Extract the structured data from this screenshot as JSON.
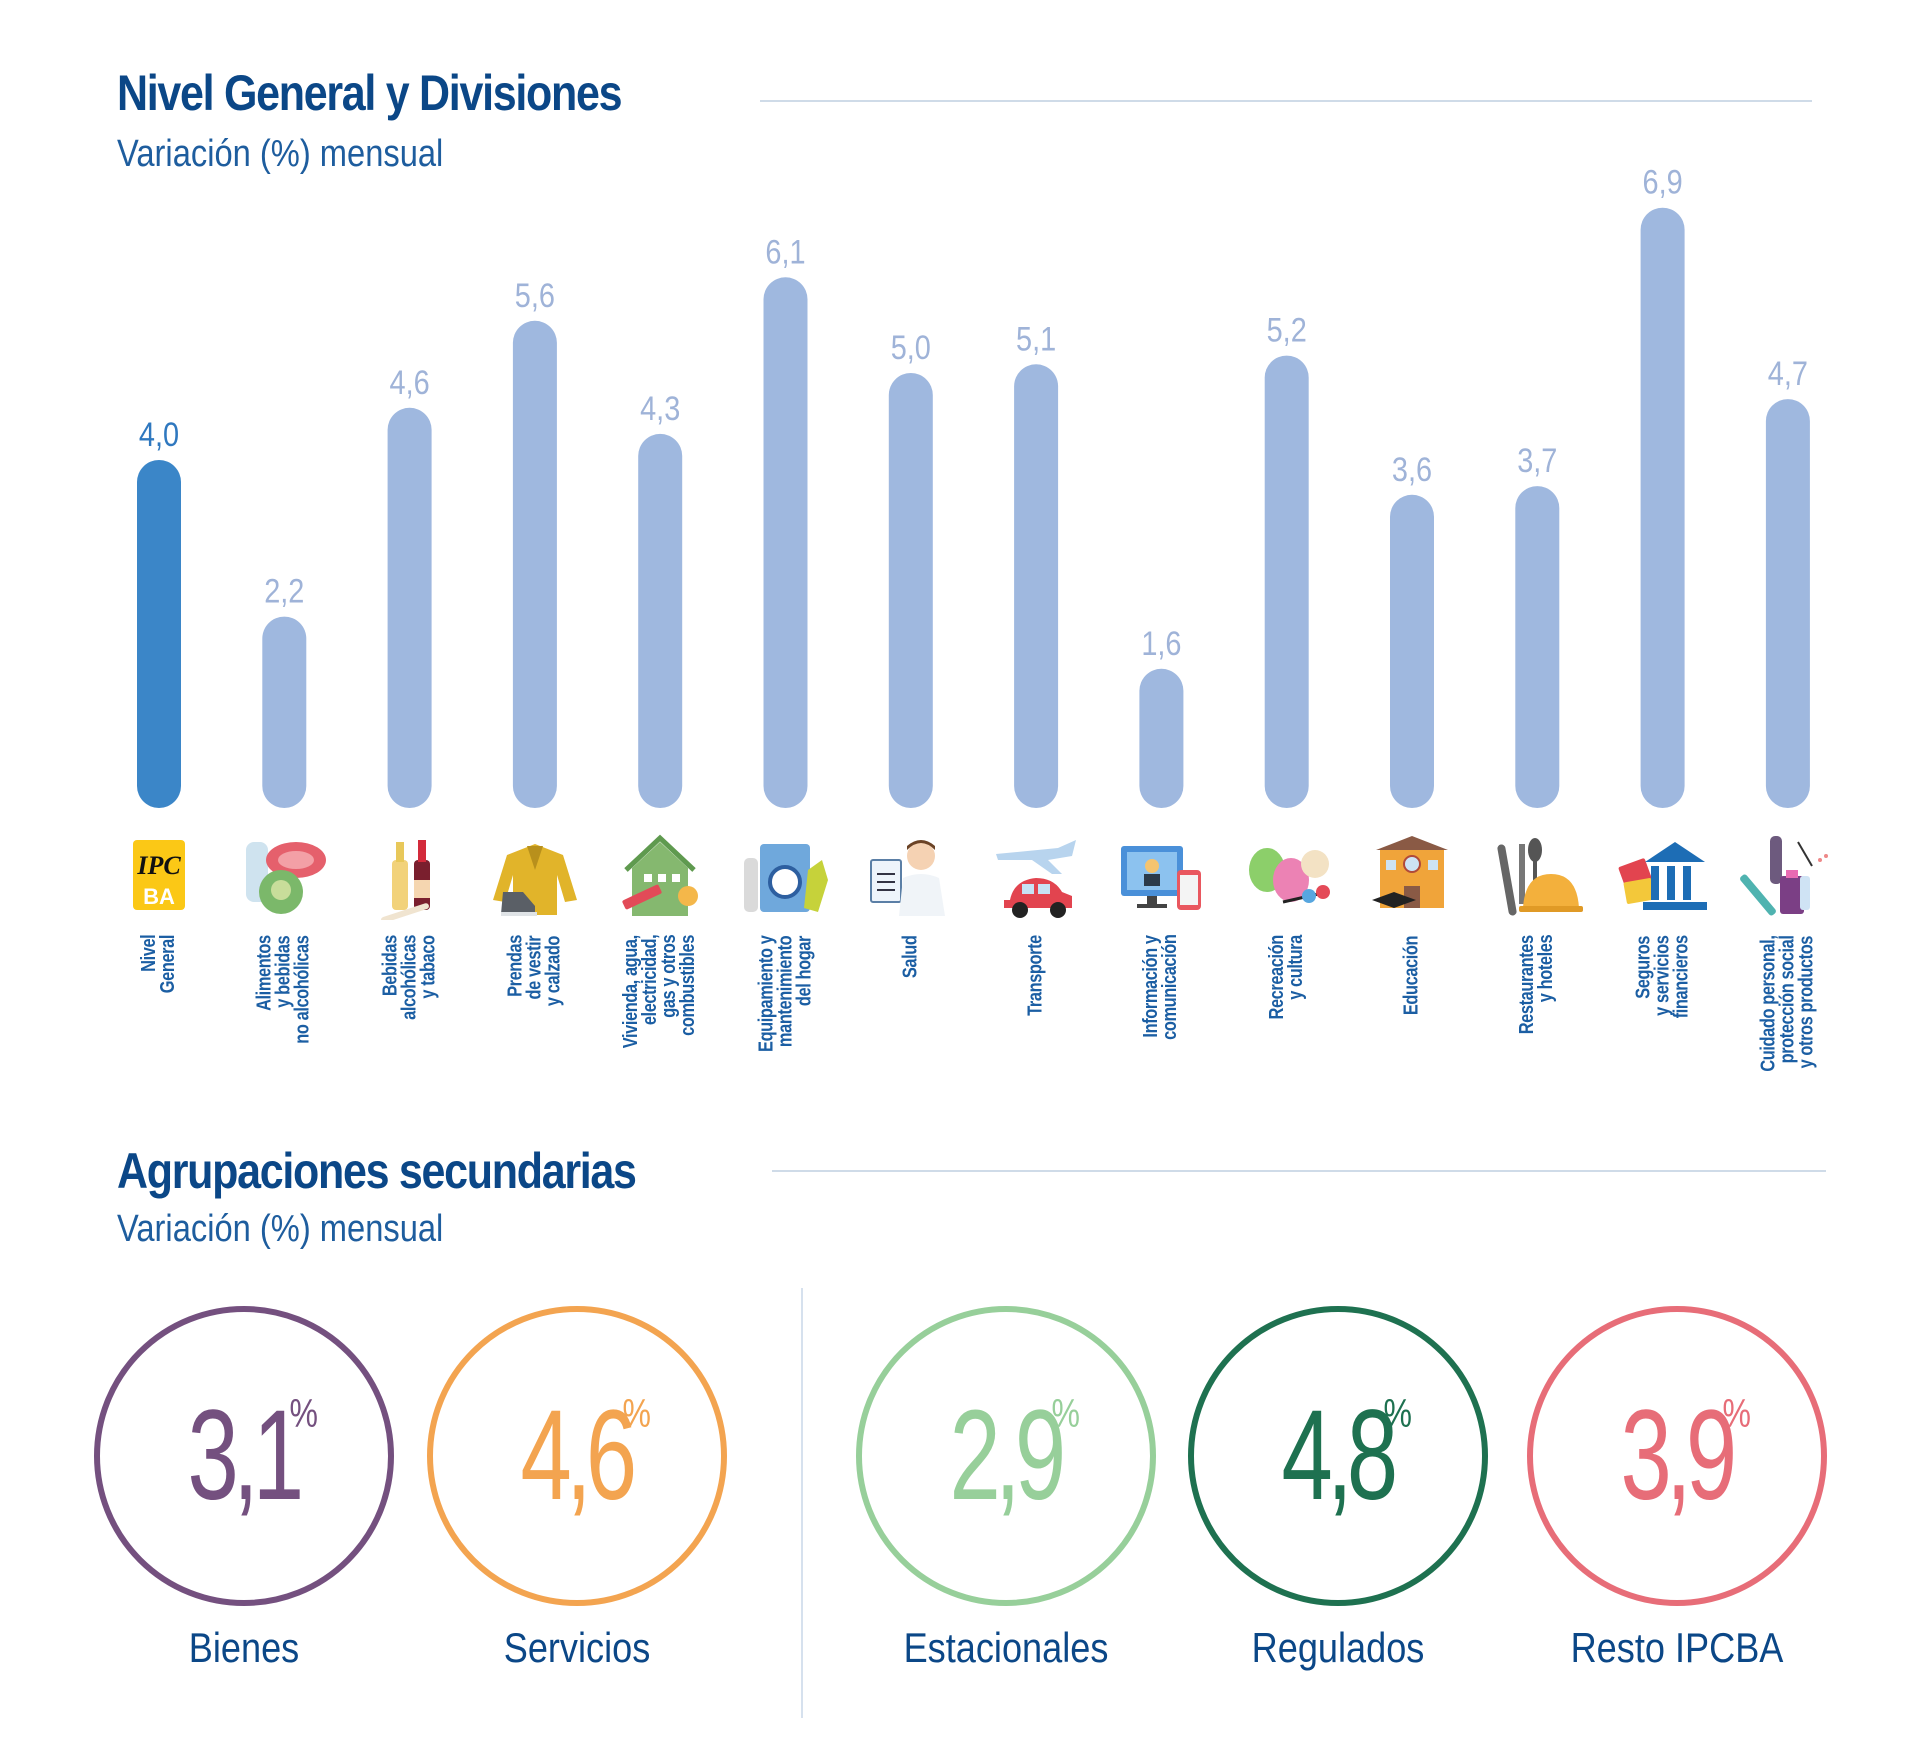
{
  "section1": {
    "title": "Nivel General y Divisiones",
    "subtitle": "Variación (%) mensual"
  },
  "section2": {
    "title": "Agrupaciones secundarias",
    "subtitle": "Variación (%) mensual"
  },
  "colors": {
    "highlight_bar": "#3b86c8",
    "bar": "#9fb8df",
    "value_label_highlight": "#2f78bf",
    "value_label": "#9fb3d8",
    "title": "#0b4787"
  },
  "chart_data": {
    "type": "bar",
    "title": "Nivel General y Divisiones",
    "subtitle": "Variación (%) mensual",
    "xlabel": "",
    "ylabel": "Variación (%) mensual",
    "ylim": [
      0,
      7
    ],
    "grid": false,
    "categories": [
      "Nivel General",
      "Alimentos y bebidas no alcohólicas",
      "Bebidas alcohólicas y tabaco",
      "Prendas de vestir y calzado",
      "Vivienda, agua, electricidad, gas y otros combustibles",
      "Equipamiento y mantenimiento del hogar",
      "Salud",
      "Transporte",
      "Información y comunicación",
      "Recreación y cultura",
      "Educación",
      "Restaurantes y hoteles",
      "Seguros y servicios financieros",
      "Cuidado personal, protección social y otros productos"
    ],
    "category_lines": [
      [
        "Nivel",
        "General"
      ],
      [
        "Alimentos",
        "y bebidas",
        "no alcohólicas"
      ],
      [
        "Bebidas",
        "alcohólicas",
        "y tabaco"
      ],
      [
        "Prendas",
        "de vestir",
        "y calzado"
      ],
      [
        "Vivienda, agua,",
        "electricidad,",
        "gas y otros",
        "combustibles"
      ],
      [
        "Equipamiento y",
        "mantenimiento",
        "del hogar"
      ],
      [
        "Salud"
      ],
      [
        "Transporte"
      ],
      [
        "Información y",
        "comunicación"
      ],
      [
        "Recreación",
        "y cultura"
      ],
      [
        "Educación"
      ],
      [
        "Restaurantes",
        "y hoteles"
      ],
      [
        "Seguros",
        "y servicios",
        "financieros"
      ],
      [
        "Cuidado personal,",
        "protección social",
        "y otros productos"
      ]
    ],
    "values": [
      4.0,
      2.2,
      4.6,
      5.6,
      4.3,
      6.1,
      5.0,
      5.1,
      1.6,
      5.2,
      3.6,
      3.7,
      6.9,
      4.7
    ],
    "value_labels": [
      "4,0",
      "2,2",
      "4,6",
      "5,6",
      "4,3",
      "6,1",
      "5,0",
      "5,1",
      "1,6",
      "5,2",
      "3,6",
      "3,7",
      "6,9",
      "4,7"
    ],
    "highlight_index": 0,
    "icons": [
      "ipc-ba-logo-icon",
      "food-icon",
      "wine-bottles-icon",
      "jacket-shoe-icon",
      "house-icon",
      "washing-machine-icon",
      "doctor-icon",
      "plane-car-icon",
      "computer-icon",
      "theater-masks-icon",
      "school-icon",
      "restaurant-icon",
      "bank-icon",
      "personal-care-icon"
    ]
  },
  "groupings": [
    {
      "label": "Bienes",
      "value": "3,1",
      "unit": "%",
      "color": "#74507f"
    },
    {
      "label": "Servicios",
      "value": "4,6",
      "unit": "%",
      "color": "#f3a450"
    },
    {
      "label": "Estacionales",
      "value": "2,9",
      "unit": "%",
      "color": "#97cf9a"
    },
    {
      "label": "Regulados",
      "value": "4,8",
      "unit": "%",
      "color": "#1e7150"
    },
    {
      "label": "Resto IPCBA",
      "value": "3,9",
      "unit": "%",
      "color": "#e76d78"
    }
  ]
}
